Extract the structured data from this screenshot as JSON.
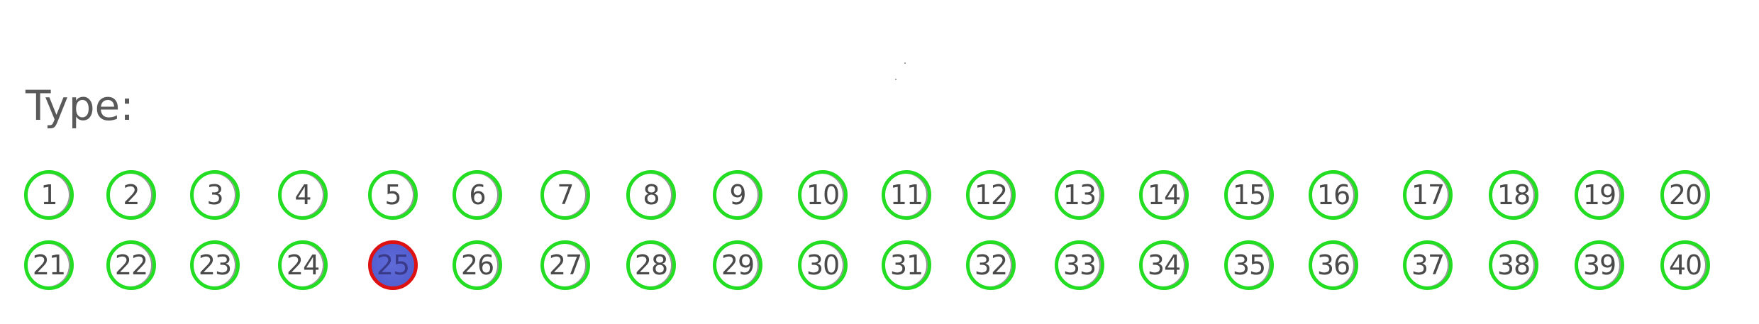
{
  "label": "Type:",
  "rows": [
    [
      "1",
      "2",
      "3",
      "4",
      "5",
      "6",
      "7",
      "8",
      "9",
      "10",
      "11",
      "12",
      "13",
      "14",
      "15",
      "16",
      "17",
      "18",
      "19",
      "20"
    ],
    [
      "21",
      "22",
      "23",
      "24",
      "25",
      "26",
      "27",
      "28",
      "29",
      "30",
      "31",
      "32",
      "33",
      "34",
      "35",
      "36",
      "37",
      "38",
      "39",
      "40"
    ]
  ],
  "selected": "25",
  "colors": {
    "ring": "#22dd22",
    "selected_ring": "#dd1111",
    "selected_fill": "#5460d0",
    "text": "#4a4a4a"
  }
}
